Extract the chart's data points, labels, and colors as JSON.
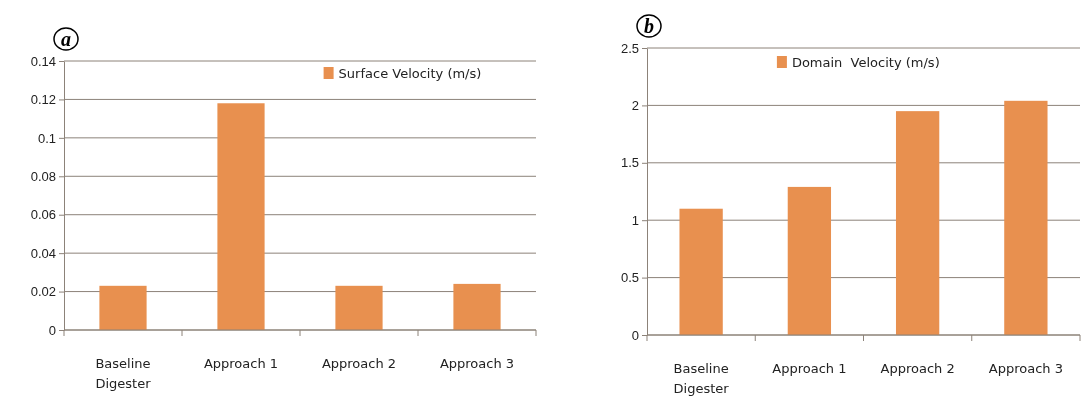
{
  "chart_data": [
    {
      "type": "bar",
      "title": "a",
      "categories": [
        "Baseline Digester",
        "Approach 1",
        "Approach 2",
        "Approach 3"
      ],
      "series": [
        {
          "name": "Surface Velocity (m/s)",
          "color": "#e8904f",
          "values": [
            0.023,
            0.118,
            0.023,
            0.024
          ]
        }
      ],
      "ylim": [
        0,
        0.14
      ],
      "yticks": [
        0,
        0.02,
        0.04,
        0.06,
        0.08,
        0.1,
        0.12,
        0.14
      ],
      "grid": "y",
      "legend": "top right"
    },
    {
      "type": "bar",
      "title": "b",
      "categories": [
        "Baseline Digester",
        "Approach 1",
        "Approach 2",
        "Approach 3"
      ],
      "series": [
        {
          "name": "Domain  Velocity (m/s)",
          "color": "#e8904f",
          "values": [
            1.1,
            1.29,
            1.95,
            2.04
          ]
        }
      ],
      "ylim": [
        0,
        2.5
      ],
      "yticks": [
        0,
        0.5,
        1,
        1.5,
        2,
        2.5
      ],
      "grid": "y",
      "legend": "top"
    }
  ]
}
